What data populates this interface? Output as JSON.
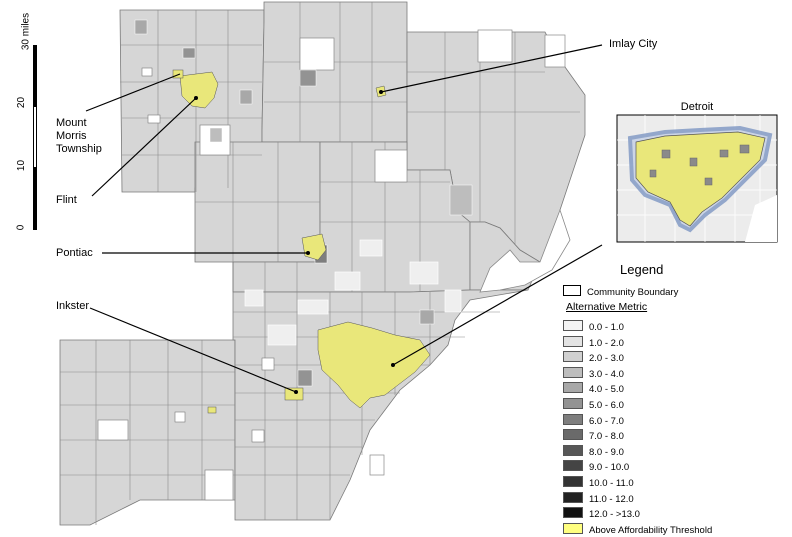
{
  "labels": {
    "mount_morris": [
      "Mount",
      "Morris",
      "Township"
    ],
    "flint": "Flint",
    "pontiac": "Pontiac",
    "inkster": "Inkster",
    "imlay_city": "Imlay City",
    "detroit_inset_title": "Detroit"
  },
  "scale_bar": {
    "unit_label": "30 miles",
    "ticks": [
      "0",
      "10",
      "20"
    ]
  },
  "legend": {
    "title": "Legend",
    "community_boundary": "Community Boundary",
    "metric_title": "Alternative Metric",
    "classes": [
      {
        "label": "0.0 - 1.0",
        "color": "#f4f4f4"
      },
      {
        "label": "1.0 - 2.0",
        "color": "#e3e3e3"
      },
      {
        "label": "2.0 - 3.0",
        "color": "#d0d0d0"
      },
      {
        "label": "3.0 - 4.0",
        "color": "#bdbdbd"
      },
      {
        "label": "4.0 - 5.0",
        "color": "#a8a8a8"
      },
      {
        "label": "5.0 - 6.0",
        "color": "#939393"
      },
      {
        "label": "6.0 - 7.0",
        "color": "#7e7e7e"
      },
      {
        "label": "7.0 - 8.0",
        "color": "#6a6a6a"
      },
      {
        "label": "8.0 - 9.0",
        "color": "#575757"
      },
      {
        "label": "9.0 - 10.0",
        "color": "#444444"
      },
      {
        "label": "10.0 - 11.0",
        "color": "#333333"
      },
      {
        "label": "11.0 - 12.0",
        "color": "#222222"
      },
      {
        "label": "12.0 - >13.0",
        "color": "#111111"
      }
    ],
    "threshold": {
      "label": "Above Affordability Threshold",
      "color": "#ffff80"
    }
  },
  "colors": {
    "region_fill": "#d6d6d6",
    "highlight": "#e9e77a"
  }
}
